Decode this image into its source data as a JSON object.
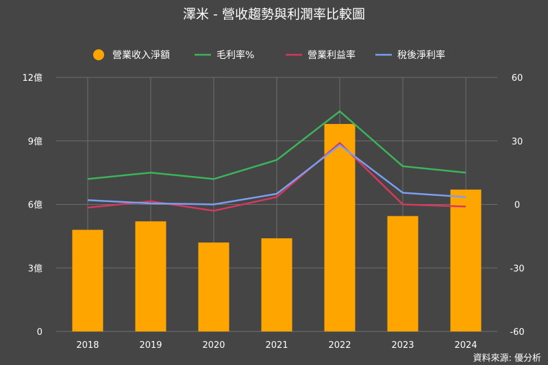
{
  "chart_data": {
    "type": "bar",
    "title": "澤米 - 營收趨勢與利潤率比較圖",
    "categories": [
      "2018",
      "2019",
      "2020",
      "2021",
      "2022",
      "2023",
      "2024"
    ],
    "series": [
      {
        "name": "營業收入淨額",
        "type": "bar",
        "axis": "left",
        "color": "#ffa500",
        "values": [
          4.8,
          5.2,
          4.2,
          4.4,
          9.8,
          5.45,
          6.7
        ]
      },
      {
        "name": "毛利率%",
        "type": "line",
        "axis": "right",
        "color": "#3cb55a",
        "values": [
          12,
          15,
          12,
          21,
          44,
          18,
          15
        ]
      },
      {
        "name": "營業利益率",
        "type": "line",
        "axis": "right",
        "color": "#d6395f",
        "values": [
          -1.5,
          1.5,
          -3,
          3.5,
          29,
          0,
          -1
        ]
      },
      {
        "name": "稅後淨利率",
        "type": "line",
        "axis": "right",
        "color": "#7b9ff0",
        "values": [
          2,
          0.5,
          0,
          5,
          28,
          5.5,
          3.5
        ]
      }
    ],
    "y_left": {
      "ylim": [
        0,
        12
      ],
      "ticks": [
        0,
        3,
        6,
        9,
        12
      ],
      "tick_labels": [
        "0",
        "3億",
        "6億",
        "9億",
        "12億"
      ]
    },
    "y_right": {
      "ylim": [
        -60,
        60
      ],
      "ticks": [
        -60,
        -30,
        0,
        30,
        60
      ],
      "tick_labels": [
        "-60",
        "-30",
        "0",
        "30",
        "60"
      ]
    },
    "grid": true,
    "legend_position": "top"
  },
  "source": "資料來源: 優分析"
}
